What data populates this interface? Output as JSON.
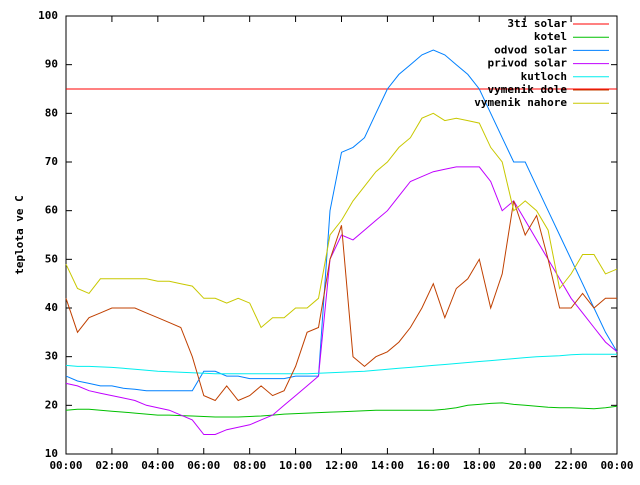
{
  "chart_data": {
    "type": "line",
    "y_label": "teplota ve C",
    "x": [
      0,
      0.5,
      1,
      1.5,
      2,
      2.5,
      3,
      3.5,
      4,
      4.5,
      5,
      5.5,
      6,
      6.5,
      7,
      7.5,
      8,
      8.5,
      9,
      9.5,
      10,
      10.5,
      11,
      11.5,
      12,
      12.5,
      13,
      13.5,
      14,
      14.5,
      15,
      15.5,
      16,
      16.5,
      17,
      17.5,
      18,
      18.5,
      19,
      19.5,
      20,
      20.5,
      21,
      21.5,
      22,
      22.5,
      23,
      23.5,
      24
    ],
    "xlim": [
      0,
      24
    ],
    "xticks": [
      {
        "value": 0,
        "label": "00:00"
      },
      {
        "value": 2,
        "label": "02:00"
      },
      {
        "value": 4,
        "label": "04:00"
      },
      {
        "value": 6,
        "label": "06:00"
      },
      {
        "value": 8,
        "label": "08:00"
      },
      {
        "value": 10,
        "label": "10:00"
      },
      {
        "value": 12,
        "label": "12:00"
      },
      {
        "value": 14,
        "label": "14:00"
      },
      {
        "value": 16,
        "label": "16:00"
      },
      {
        "value": 18,
        "label": "18:00"
      },
      {
        "value": 20,
        "label": "20:00"
      },
      {
        "value": 22,
        "label": "22:00"
      },
      {
        "value": 24,
        "label": "00:00"
      }
    ],
    "ylim": [
      10,
      100
    ],
    "yticks": [
      10,
      20,
      30,
      40,
      50,
      60,
      70,
      80,
      90,
      100
    ],
    "legend": "top-right",
    "series": [
      {
        "name": "3ti solar",
        "color": "#ff0000",
        "values": [
          85,
          85,
          85,
          85,
          85,
          85,
          85,
          85,
          85,
          85,
          85,
          85,
          85,
          85,
          85,
          85,
          85,
          85,
          85,
          85,
          85,
          85,
          85,
          85,
          85,
          85,
          85,
          85,
          85,
          85,
          85,
          85,
          85,
          85,
          85,
          85,
          85,
          85,
          85,
          85,
          85,
          85,
          85,
          85,
          85,
          85,
          85,
          85,
          85
        ]
      },
      {
        "name": "kotel",
        "color": "#00c000",
        "values": [
          19,
          19.2,
          19.2,
          19,
          18.8,
          18.6,
          18.4,
          18.2,
          18,
          18,
          17.9,
          17.8,
          17.7,
          17.6,
          17.6,
          17.6,
          17.7,
          17.8,
          18,
          18.2,
          18.3,
          18.4,
          18.5,
          18.6,
          18.7,
          18.8,
          18.9,
          19,
          19,
          19,
          19,
          19,
          19,
          19.2,
          19.5,
          20,
          20.2,
          20.4,
          20.5,
          20.2,
          20,
          19.8,
          19.6,
          19.5,
          19.5,
          19.4,
          19.3,
          19.5,
          19.8
        ]
      },
      {
        "name": "odvod solar",
        "color": "#0080ff",
        "values": [
          26,
          25,
          24.5,
          24,
          24,
          23.5,
          23.3,
          23,
          23,
          23,
          23,
          23,
          27,
          27,
          26,
          26,
          25.5,
          25.5,
          25.5,
          25.5,
          26,
          26,
          26,
          60,
          72,
          73,
          75,
          80,
          85,
          88,
          90,
          92,
          93,
          92,
          90,
          88,
          85,
          80,
          75,
          70,
          70,
          65,
          60,
          55,
          50,
          45,
          40,
          35,
          31
        ]
      },
      {
        "name": "privod solar",
        "color": "#c000ff",
        "values": [
          24.5,
          24,
          23,
          22.5,
          22,
          21.5,
          21,
          20,
          19.5,
          19,
          18,
          17,
          14,
          14,
          15,
          15.5,
          16,
          17,
          18,
          20,
          22,
          24,
          26,
          50,
          55,
          54,
          56,
          58,
          60,
          63,
          66,
          67,
          68,
          68.5,
          69,
          69,
          69,
          66,
          60,
          62,
          58,
          54,
          50,
          46,
          42,
          39,
          36,
          33,
          31
        ]
      },
      {
        "name": "kutloch",
        "color": "#00eeee",
        "values": [
          28.2,
          28,
          28,
          27.9,
          27.8,
          27.6,
          27.4,
          27.2,
          27,
          26.9,
          26.8,
          26.7,
          26.6,
          26.5,
          26.5,
          26.5,
          26.5,
          26.5,
          26.5,
          26.5,
          26.5,
          26.5,
          26.6,
          26.7,
          26.8,
          26.9,
          27,
          27.2,
          27.4,
          27.6,
          27.8,
          28,
          28.2,
          28.4,
          28.6,
          28.8,
          29,
          29.2,
          29.4,
          29.6,
          29.8,
          30,
          30.1,
          30.2,
          30.4,
          30.5,
          30.5,
          30.5,
          30.5
        ]
      },
      {
        "name": "vymenik dole",
        "color": "#c04000",
        "values": [
          42,
          35,
          38,
          39,
          40,
          40,
          40,
          39,
          38,
          37,
          36,
          30,
          22,
          21,
          24,
          21,
          22,
          24,
          22,
          23,
          28,
          35,
          36,
          50,
          57,
          30,
          28,
          30,
          31,
          33,
          36,
          40,
          45,
          38,
          44,
          46,
          50,
          40,
          47,
          62,
          55,
          59,
          50,
          40,
          40,
          43,
          40,
          42,
          42
        ]
      },
      {
        "name": "vymenik nahore",
        "color": "#c8c800",
        "values": [
          49,
          44,
          43,
          46,
          46,
          46,
          46,
          46,
          45.5,
          45.5,
          45,
          44.5,
          42,
          42,
          41,
          42,
          41,
          36,
          38,
          38,
          40,
          40,
          42,
          55,
          58,
          62,
          65,
          68,
          70,
          73,
          75,
          79,
          80,
          78.5,
          79,
          78.5,
          78,
          73,
          70,
          60,
          62,
          60,
          56,
          44,
          47,
          51,
          51,
          47,
          48
        ]
      }
    ]
  }
}
